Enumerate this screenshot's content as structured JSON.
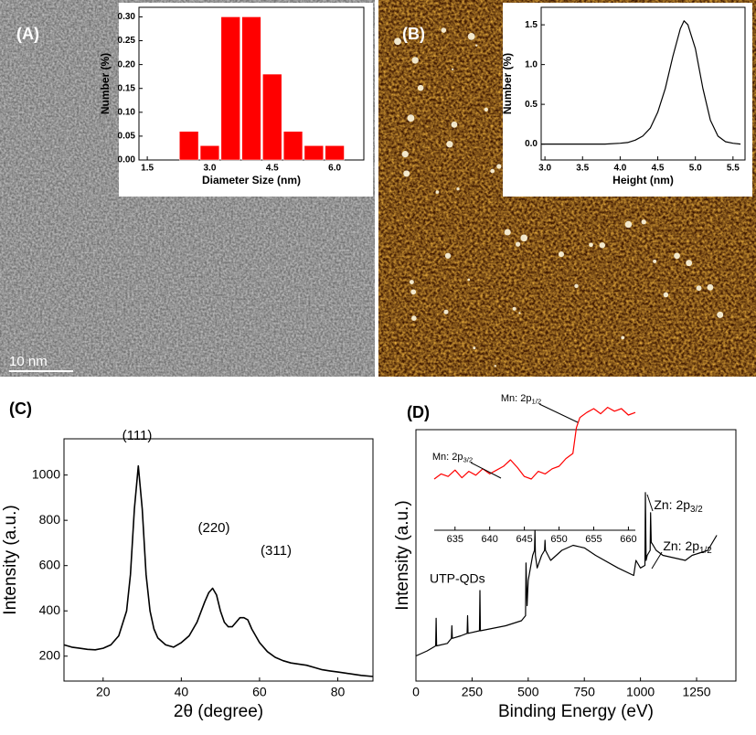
{
  "panels": {
    "labels": [
      "(A)",
      "(B)",
      "(C)",
      "(D)"
    ],
    "scale_bar": "10 nm"
  },
  "chart_data": [
    {
      "type": "histogram",
      "xlabel": "Diameter Size (nm)",
      "ylabel": "Number (%)",
      "color": "#ff0000",
      "bins": [
        2.25,
        2.75,
        3.25,
        3.75,
        4.25,
        4.75,
        5.25,
        5.75,
        6.25
      ],
      "values": [
        0.06,
        0.03,
        0.3,
        0.3,
        0.18,
        0.06,
        0.03,
        0.03
      ],
      "xlim": [
        1.3,
        6.7
      ],
      "ylim": [
        0,
        0.32
      ],
      "xticks": [
        {
          "value": 1.5,
          "label": "1.5"
        },
        {
          "value": 3,
          "label": "3.0"
        },
        {
          "value": 4.5,
          "label": "4.5"
        },
        {
          "value": 6,
          "label": "6.0"
        }
      ],
      "yticks": [
        {
          "value": 0,
          "label": "0.00"
        },
        {
          "value": 0.05,
          "label": "0.05"
        },
        {
          "value": 0.1,
          "label": "0.10"
        },
        {
          "value": 0.15,
          "label": "0.15"
        },
        {
          "value": 0.2,
          "label": "0.20"
        },
        {
          "value": 0.25,
          "label": "0.25"
        },
        {
          "value": 0.3,
          "label": "0.30"
        }
      ]
    },
    {
      "type": "line",
      "xlabel": "Height (nm)",
      "ylabel": "Number (%)",
      "color": "#000000",
      "x": [
        2.95,
        3.2,
        3.5,
        3.8,
        4.0,
        4.1,
        4.2,
        4.3,
        4.4,
        4.5,
        4.6,
        4.7,
        4.8,
        4.85,
        4.9,
        5.0,
        5.1,
        5.2,
        5.3,
        5.4,
        5.5,
        5.6
      ],
      "values": [
        0,
        0,
        0,
        0,
        0.01,
        0.02,
        0.05,
        0.1,
        0.2,
        0.4,
        0.7,
        1.1,
        1.45,
        1.55,
        1.5,
        1.2,
        0.7,
        0.3,
        0.1,
        0.03,
        0.01,
        0
      ],
      "xlim": [
        2.95,
        5.66
      ],
      "ylim": [
        -0.2,
        1.72
      ],
      "xticks": [
        {
          "value": 3,
          "label": "3.0"
        },
        {
          "value": 3.5,
          "label": "3.5"
        },
        {
          "value": 4,
          "label": "4.0"
        },
        {
          "value": 4.5,
          "label": "4.5"
        },
        {
          "value": 5,
          "label": "5.0"
        },
        {
          "value": 5.5,
          "label": "5.5"
        }
      ],
      "yticks": [
        {
          "value": 0,
          "label": "0.0"
        },
        {
          "value": 0.5,
          "label": "0.5"
        },
        {
          "value": 1,
          "label": "1.0"
        },
        {
          "value": 1.5,
          "label": "1.5"
        }
      ]
    },
    {
      "type": "line",
      "xlabel": "2θ (degree)",
      "ylabel": "Intensity (a.u.)",
      "color": "#000000",
      "x": [
        10,
        12,
        14,
        16,
        18,
        20,
        22,
        24,
        26,
        27,
        28,
        29,
        30,
        31,
        32,
        33,
        34,
        36,
        38,
        40,
        42,
        44,
        46,
        47,
        48,
        49,
        50,
        51,
        52,
        53,
        54,
        55,
        56,
        57,
        58,
        60,
        62,
        64,
        66,
        68,
        70,
        72,
        74,
        76,
        78,
        80,
        82,
        84,
        86,
        89
      ],
      "values": [
        250,
        240,
        235,
        230,
        228,
        235,
        250,
        290,
        400,
        560,
        850,
        1040,
        850,
        560,
        400,
        320,
        280,
        250,
        240,
        260,
        290,
        350,
        440,
        480,
        500,
        470,
        400,
        350,
        330,
        330,
        350,
        370,
        370,
        360,
        320,
        260,
        220,
        195,
        180,
        170,
        165,
        160,
        150,
        140,
        135,
        130,
        125,
        120,
        115,
        110
      ],
      "xlim": [
        10,
        89
      ],
      "ylim": [
        90,
        1160
      ],
      "xticks": [
        20,
        40,
        60,
        80
      ],
      "yticks": [
        200,
        400,
        600,
        800,
        1000
      ],
      "annotations": [
        "(111)",
        "(220)",
        "(311)"
      ]
    },
    {
      "type": "line",
      "xlabel": "Binding Energy (eV)",
      "ylabel": "Intensity (a.u.)",
      "color": "#000000",
      "x": [
        0,
        50,
        88,
        90,
        92,
        140,
        158,
        160,
        162,
        200,
        228,
        230,
        232,
        283,
        285,
        287,
        400,
        470,
        488,
        490,
        495,
        500,
        520,
        528,
        530,
        532,
        540,
        560,
        573,
        575,
        577,
        600,
        650,
        700,
        750,
        800,
        900,
        970,
        980,
        1000,
        1020,
        1022,
        1025,
        1030,
        1043,
        1045,
        1048,
        1050,
        1070,
        1100,
        1200,
        1230,
        1300,
        1340
      ],
      "values": [
        10,
        12,
        14,
        25,
        14,
        15,
        17,
        22,
        17,
        18,
        19,
        26,
        19,
        20,
        36,
        20,
        22,
        24,
        26,
        47,
        30,
        40,
        50,
        52,
        60,
        50,
        45,
        50,
        52,
        56,
        52,
        48,
        52,
        54,
        53,
        50,
        45,
        42,
        48,
        45,
        46,
        75,
        48,
        50,
        52,
        67,
        55,
        55,
        52,
        50,
        48,
        50,
        52,
        58
      ],
      "xlim": [
        0,
        1425
      ],
      "ylim": [
        0,
        100
      ],
      "xticks": [
        0,
        250,
        500,
        750,
        1000,
        1250
      ],
      "annotations": [
        {
          "text": "Zn: 2p",
          "sub": "3/2"
        },
        {
          "text": "Zn: 2p",
          "sub": "1/2"
        },
        "UTP-QDs"
      ]
    },
    {
      "type": "line",
      "color": "#ff0000",
      "x": [
        632,
        633,
        634,
        635,
        636,
        637,
        638,
        639,
        640,
        641,
        642,
        643,
        644,
        645,
        646,
        647,
        648,
        649,
        650,
        651,
        652,
        652.5,
        653,
        654,
        655,
        656,
        657,
        658,
        659,
        660,
        661
      ],
      "values": [
        40,
        44,
        42,
        47,
        41,
        46,
        43,
        48,
        44,
        47,
        50,
        55,
        49,
        42,
        40,
        46,
        44,
        48,
        50,
        56,
        60,
        80,
        88,
        92,
        95,
        91,
        96,
        93,
        95,
        90,
        92
      ],
      "xlim": [
        632,
        661
      ],
      "ylim": [
        0,
        100
      ],
      "xticks": [
        635,
        640,
        645,
        650,
        655,
        660
      ],
      "annotations": [
        {
          "text": "Mn: 2p",
          "sub": "3/2"
        },
        {
          "text": "Mn: 2p",
          "sub": "1/2"
        }
      ]
    }
  ]
}
